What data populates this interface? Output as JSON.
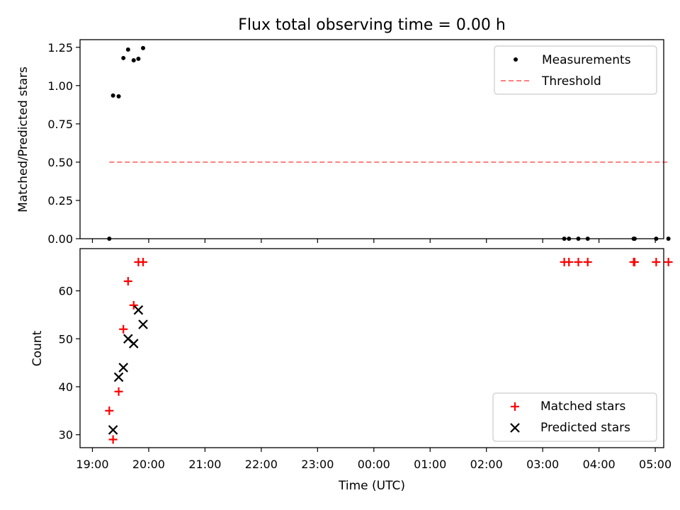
{
  "chart_data": [
    {
      "type": "scatter",
      "title": "Flux total observing time = 0.00 h",
      "xlabel": "",
      "ylabel": "Matched/Predicted stars",
      "xlim_hours": [
        18.78,
        29.15
      ],
      "ylim": [
        0,
        1.3
      ],
      "y_ticks": [
        0.0,
        0.25,
        0.5,
        0.75,
        1.0,
        1.25
      ],
      "y_tick_labels": [
        "0.00",
        "0.25",
        "0.50",
        "0.75",
        "1.00",
        "1.25"
      ],
      "legend": "top-right",
      "series": [
        {
          "name": "Measurements",
          "marker": "dot",
          "color": "#000000",
          "points": [
            {
              "x": "19:18",
              "y": 0.0
            },
            {
              "x": "19:22",
              "y": 0.935
            },
            {
              "x": "19:28",
              "y": 0.93
            },
            {
              "x": "19:33",
              "y": 1.18
            },
            {
              "x": "19:38",
              "y": 1.235
            },
            {
              "x": "19:44",
              "y": 1.165
            },
            {
              "x": "19:49",
              "y": 1.175
            },
            {
              "x": "19:54",
              "y": 1.245
            },
            {
              "x": "03:23",
              "y": 0.0
            },
            {
              "x": "03:28",
              "y": 0.0
            },
            {
              "x": "03:38",
              "y": 0.0
            },
            {
              "x": "03:48",
              "y": 0.0
            },
            {
              "x": "04:37",
              "y": 0.0
            },
            {
              "x": "04:38",
              "y": 0.0
            },
            {
              "x": "05:01",
              "y": 0.0
            },
            {
              "x": "05:14",
              "y": 0.0
            }
          ]
        },
        {
          "name": "Threshold",
          "marker": "dashed-line",
          "color": "#ff7f7f",
          "x": [
            "19:18",
            "05:14"
          ],
          "y": [
            0.5,
            0.5
          ]
        }
      ]
    },
    {
      "type": "scatter",
      "title": "",
      "xlabel": "Time (UTC)",
      "ylabel": "Count",
      "xlim_hours": [
        18.78,
        29.15
      ],
      "ylim": [
        27.3,
        68.8
      ],
      "y_ticks": [
        30,
        40,
        50,
        60
      ],
      "x_ticks": [
        "19:00",
        "20:00",
        "21:00",
        "22:00",
        "23:00",
        "00:00",
        "01:00",
        "02:00",
        "03:00",
        "04:00",
        "05:00"
      ],
      "legend": "bottom-right",
      "series": [
        {
          "name": "Matched stars",
          "marker": "plus",
          "color": "#ff0000",
          "points": [
            {
              "x": "19:18",
              "y": 35
            },
            {
              "x": "19:22",
              "y": 29
            },
            {
              "x": "19:28",
              "y": 39
            },
            {
              "x": "19:33",
              "y": 52
            },
            {
              "x": "19:38",
              "y": 62
            },
            {
              "x": "19:44",
              "y": 57
            },
            {
              "x": "19:49",
              "y": 66
            },
            {
              "x": "19:54",
              "y": 66
            },
            {
              "x": "03:23",
              "y": 66
            },
            {
              "x": "03:28",
              "y": 66
            },
            {
              "x": "03:38",
              "y": 66
            },
            {
              "x": "03:48",
              "y": 66
            },
            {
              "x": "04:37",
              "y": 66
            },
            {
              "x": "04:38",
              "y": 66
            },
            {
              "x": "05:01",
              "y": 66
            },
            {
              "x": "05:14",
              "y": 66
            }
          ]
        },
        {
          "name": "Predicted stars",
          "marker": "x",
          "color": "#000000",
          "points": [
            {
              "x": "19:22",
              "y": 31
            },
            {
              "x": "19:28",
              "y": 42
            },
            {
              "x": "19:33",
              "y": 44
            },
            {
              "x": "19:38",
              "y": 50
            },
            {
              "x": "19:44",
              "y": 49
            },
            {
              "x": "19:49",
              "y": 56
            },
            {
              "x": "19:54",
              "y": 53
            }
          ]
        }
      ]
    }
  ]
}
